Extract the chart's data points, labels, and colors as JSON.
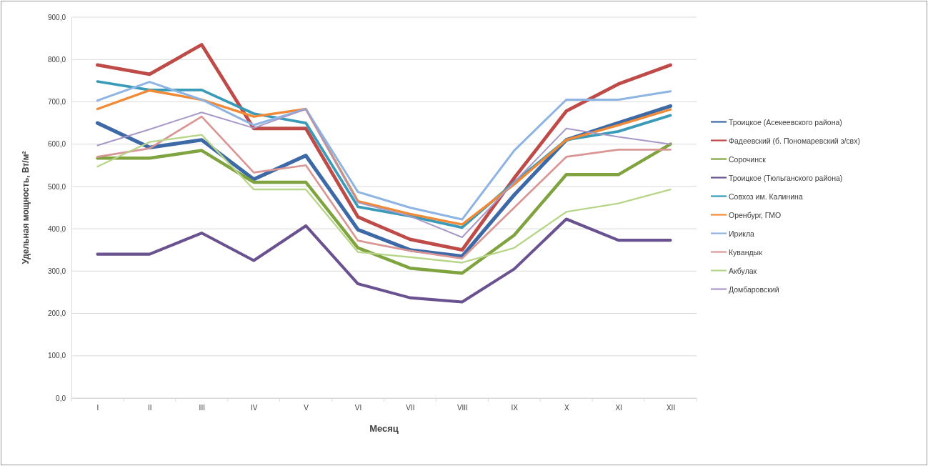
{
  "chart_data": {
    "type": "line",
    "xlabel": "Месяц",
    "ylabel": "Удельная мощность, Вт/м²",
    "categories": [
      "I",
      "II",
      "III",
      "IV",
      "V",
      "VI",
      "VII",
      "VIII",
      "IX",
      "X",
      "XI",
      "XII"
    ],
    "ylim": [
      0,
      900
    ],
    "yticks": [
      {
        "value": 0,
        "label": "0,0"
      },
      {
        "value": 100,
        "label": "100,0"
      },
      {
        "value": 200,
        "label": "200,0"
      },
      {
        "value": 300,
        "label": "300,0"
      },
      {
        "value": 400,
        "label": "400,0"
      },
      {
        "value": 500,
        "label": "500,0"
      },
      {
        "value": 600,
        "label": "600,0"
      },
      {
        "value": 700,
        "label": "700,0"
      },
      {
        "value": 800,
        "label": "800,0"
      },
      {
        "value": 900,
        "label": "900,0"
      }
    ],
    "grid": "y",
    "legend": "right",
    "marker": "none",
    "line_style": "solid",
    "series": [
      {
        "name": "Троицкое (Асекеевского района)",
        "color": "#3d6aa6",
        "values": [
          650,
          592,
          610,
          517,
          573,
          398,
          350,
          335,
          480,
          610,
          650,
          690
        ]
      },
      {
        "name": "Фадеевский (б. Пономаревский з/свх)",
        "color": "#be4b48",
        "values": [
          787,
          765,
          835,
          637,
          637,
          428,
          375,
          350,
          520,
          678,
          742,
          787
        ]
      },
      {
        "name": "Сорочинск",
        "color": "#7fa33e",
        "values": [
          567,
          567,
          585,
          510,
          510,
          355,
          307,
          295,
          385,
          528,
          528,
          600
        ]
      },
      {
        "name": "Троицкое (Тюльганского района)",
        "color": "#6a5290",
        "values": [
          340,
          340,
          390,
          325,
          407,
          270,
          237,
          227,
          305,
          423,
          373,
          373
        ]
      },
      {
        "name": "Совхоз им. Калинина",
        "color": "#3a9bb8",
        "values": [
          748,
          728,
          728,
          672,
          650,
          452,
          430,
          403,
          510,
          610,
          630,
          668
        ]
      },
      {
        "name": "Оренбург, ГМО",
        "color": "#f08a36",
        "values": [
          683,
          727,
          705,
          665,
          683,
          465,
          435,
          410,
          505,
          610,
          645,
          682
        ]
      },
      {
        "name": "Ирикла",
        "color": "#8eb4e3",
        "values": [
          703,
          747,
          705,
          645,
          683,
          487,
          450,
          422,
          585,
          705,
          705,
          725
        ]
      },
      {
        "name": "Кувандык",
        "color": "#d99694",
        "values": [
          570,
          590,
          665,
          533,
          550,
          372,
          348,
          330,
          450,
          570,
          587,
          587
        ]
      },
      {
        "name": "Акбулак",
        "color": "#b8d68a",
        "values": [
          547,
          605,
          622,
          493,
          493,
          345,
          333,
          320,
          355,
          440,
          460,
          493
        ]
      },
      {
        "name": "Домбаровский",
        "color": "#a898c8",
        "values": [
          597,
          635,
          675,
          638,
          683,
          462,
          430,
          380,
          510,
          637,
          617,
          600
        ]
      }
    ]
  }
}
